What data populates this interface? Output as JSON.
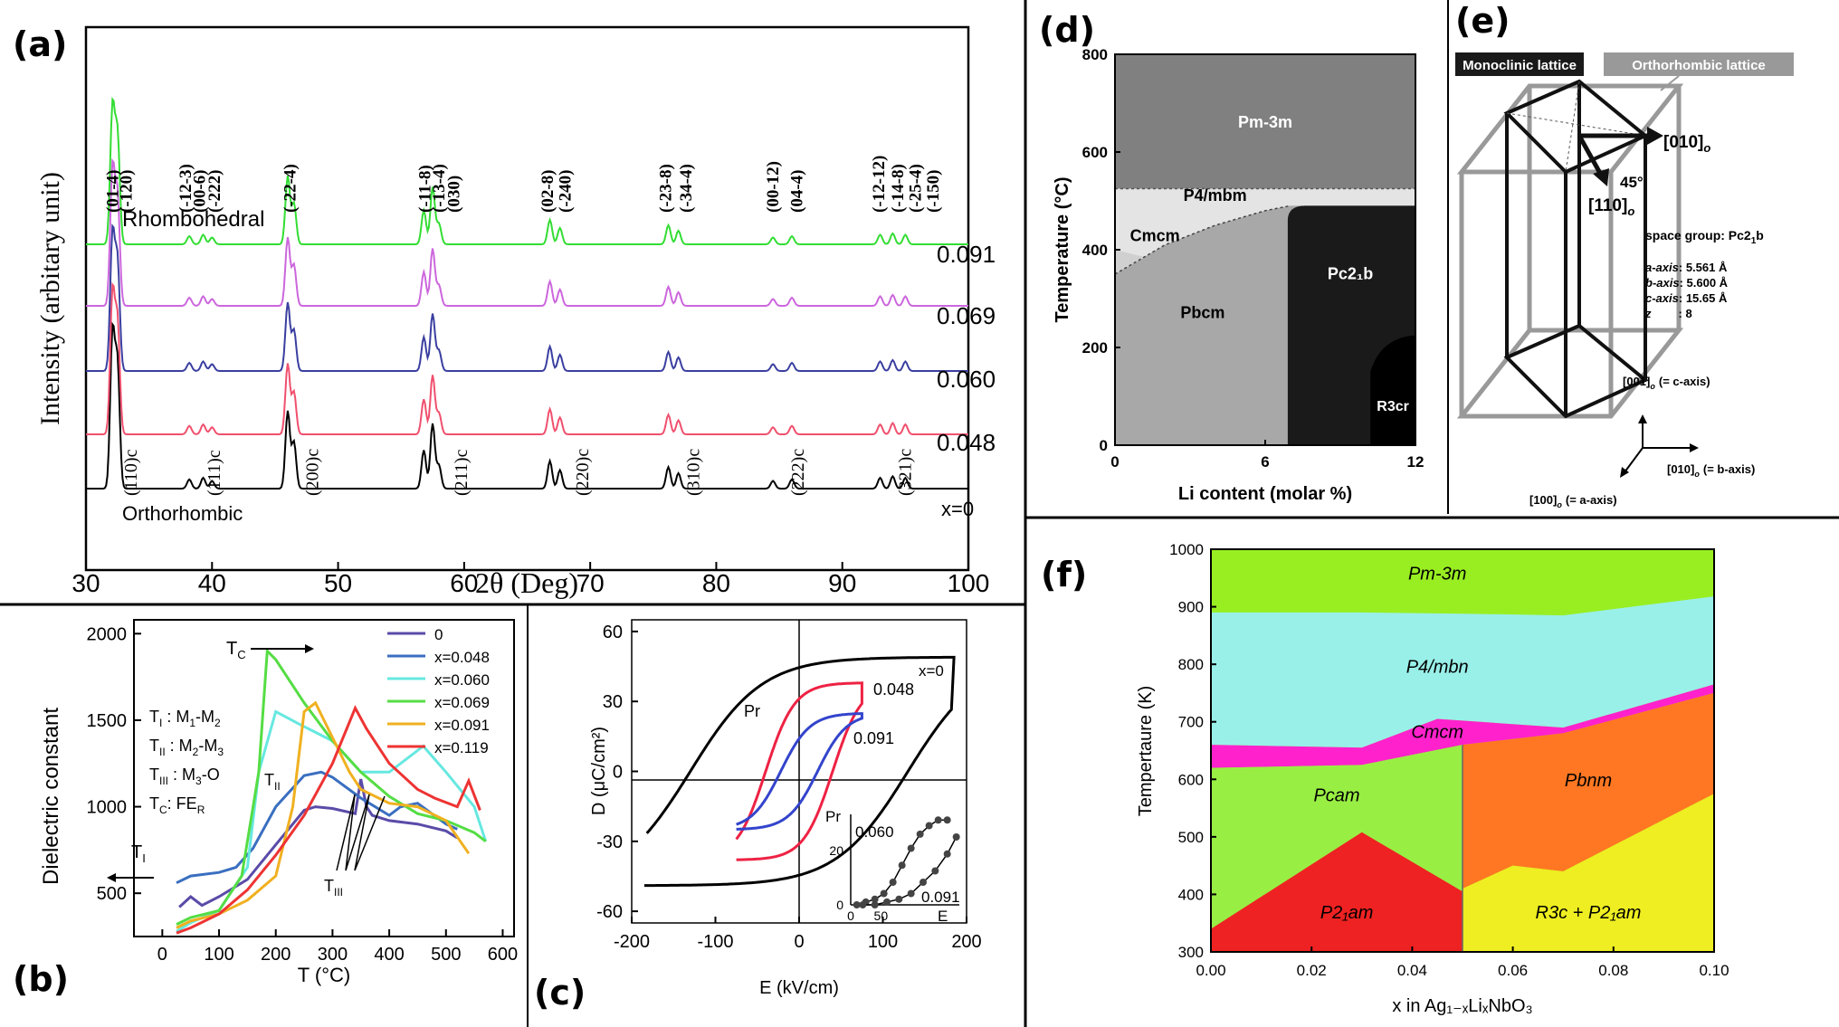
{
  "chart_data": [
    {
      "panel": "(a)",
      "type": "line",
      "title": "",
      "xlabel": "2θ (Deg)",
      "ylabel": "Intensity (arbitary unit)",
      "xlim": [
        30,
        100
      ],
      "xticks": [
        "30",
        "40",
        "50",
        "60",
        "70",
        "80",
        "90",
        "100"
      ],
      "series": [
        {
          "name": "x=0",
          "label": "x=0",
          "color": "#000000",
          "level": 0,
          "phase": "Orthorhombic"
        },
        {
          "name": "0.048",
          "label": "0.048",
          "color": "#f0506e",
          "level": 1
        },
        {
          "name": "0.060",
          "label": "0.060",
          "color": "#3a3fa0",
          "level": 2
        },
        {
          "name": "0.069",
          "label": "0.069",
          "color": "#cc66dd",
          "level": 3
        },
        {
          "name": "0.091",
          "label": "0.091",
          "color": "#33dd33",
          "level": 4,
          "phase": "Rhombohedral"
        }
      ],
      "phase_labels": {
        "top": "Rhombohedral",
        "bottom": "Orthorhombic"
      },
      "peaks": [
        {
          "pos": 32.1,
          "h": 1.0
        },
        {
          "pos": 32.5,
          "h": 0.8
        },
        {
          "pos": 38.2,
          "h": 0.06
        },
        {
          "pos": 39.3,
          "h": 0.07
        },
        {
          "pos": 40.0,
          "h": 0.05
        },
        {
          "pos": 46.0,
          "h": 0.5
        },
        {
          "pos": 46.5,
          "h": 0.3
        },
        {
          "pos": 56.8,
          "h": 0.25
        },
        {
          "pos": 57.5,
          "h": 0.42
        },
        {
          "pos": 58.0,
          "h": 0.15
        },
        {
          "pos": 66.8,
          "h": 0.18
        },
        {
          "pos": 67.6,
          "h": 0.12
        },
        {
          "pos": 76.2,
          "h": 0.14
        },
        {
          "pos": 77.0,
          "h": 0.1
        },
        {
          "pos": 84.5,
          "h": 0.05
        },
        {
          "pos": 86.0,
          "h": 0.06
        },
        {
          "pos": 93.0,
          "h": 0.07
        },
        {
          "pos": 94.0,
          "h": 0.08
        },
        {
          "pos": 95.0,
          "h": 0.07
        }
      ],
      "top_indices": [
        {
          "t": "(01-4)",
          "x": 32.1
        },
        {
          "t": "(-120)",
          "x": 33.2
        },
        {
          "t": "(-12-3)",
          "x": 37.9
        },
        {
          "t": "(00-6)",
          "x": 39.0
        },
        {
          "t": "(-222)",
          "x": 40.2
        },
        {
          "t": "(-22-4)",
          "x": 46.2
        },
        {
          "t": "(-11-8)",
          "x": 56.9
        },
        {
          "t": "(-13-4)",
          "x": 58.0
        },
        {
          "t": "(030)",
          "x": 59.2
        },
        {
          "t": "(02-8)",
          "x": 66.6
        },
        {
          "t": "(-240)",
          "x": 68.0
        },
        {
          "t": "(-23-8)",
          "x": 76.0
        },
        {
          "t": "(-34-4)",
          "x": 77.6
        },
        {
          "t": "(00-12)",
          "x": 84.5
        },
        {
          "t": "(04-4)",
          "x": 86.4
        },
        {
          "t": "(-12-12)",
          "x": 92.9
        },
        {
          "t": "(-14-8)",
          "x": 94.4
        },
        {
          "t": "(-25-4)",
          "x": 95.8
        },
        {
          "t": "(-150)",
          "x": 97.2
        }
      ],
      "bottom_indices": [
        {
          "t": "(110)c",
          "x": 33.6
        },
        {
          "t": "(111)c",
          "x": 40.2
        },
        {
          "t": "(200)c",
          "x": 48.0
        },
        {
          "t": "(211)c",
          "x": 59.8
        },
        {
          "t": "(220)c",
          "x": 69.4
        },
        {
          "t": "(310)c",
          "x": 78.2
        },
        {
          "t": "(222)c",
          "x": 86.5
        },
        {
          "t": "(321)c",
          "x": 95.0
        }
      ]
    },
    {
      "panel": "(b)",
      "type": "line",
      "xlabel": "T (°C)",
      "ylabel": "Dielectric constant",
      "xlim": [
        -50,
        620
      ],
      "ylim": [
        250,
        2080
      ],
      "xticks": [
        "0",
        "100",
        "200",
        "300",
        "400",
        "500",
        "600"
      ],
      "yticks": [
        "500",
        "1000",
        "1500",
        "2000"
      ],
      "legend": "top-right",
      "annotations": {
        "tc": "T",
        "tc_sub": "C",
        "ti": "T",
        "ti_sub": "I",
        "tii": "T",
        "tii_sub": "II",
        "tiii": "T",
        "tiii_sub": "III"
      },
      "key_lines": [
        {
          "a": "T",
          "s": "I",
          "b": " : M",
          "s2": "1",
          "c": "-M",
          "s3": "2"
        },
        {
          "a": "T",
          "s": "II",
          "b": " : M",
          "s2": "2",
          "c": "-M",
          "s3": "3"
        },
        {
          "a": "T",
          "s": "III",
          "b": " : M",
          "s2": "3",
          "c": "-O",
          "s3": ""
        },
        {
          "a": "T",
          "s": "C",
          "b": ": FE",
          "s2": "R",
          "c": "",
          "s3": ""
        }
      ],
      "series": [
        {
          "name": "0",
          "color": "#5a4ba8",
          "x": [
            30,
            50,
            70,
            100,
            150,
            200,
            250,
            270,
            300,
            340,
            350,
            360,
            370,
            400,
            450,
            500,
            520
          ],
          "y": [
            420,
            480,
            430,
            480,
            580,
            780,
            980,
            1000,
            990,
            960,
            1160,
            1000,
            950,
            920,
            900,
            860,
            820
          ]
        },
        {
          "name": "x=0.048",
          "color": "#3a6fc0",
          "x": [
            25,
            50,
            100,
            130,
            160,
            200,
            250,
            280,
            300,
            350,
            400,
            420,
            450,
            500,
            520
          ],
          "y": [
            560,
            600,
            620,
            650,
            760,
            1000,
            1180,
            1200,
            1170,
            1050,
            950,
            1000,
            1020,
            900,
            870
          ]
        },
        {
          "name": "x=0.060",
          "color": "#66e8e0",
          "x": [
            25,
            50,
            100,
            150,
            170,
            200,
            240,
            300,
            350,
            400,
            440,
            460,
            500,
            550,
            570
          ],
          "y": [
            280,
            330,
            400,
            650,
            1200,
            1550,
            1480,
            1380,
            1200,
            1200,
            1300,
            1350,
            1200,
            1000,
            800
          ]
        },
        {
          "name": "x=0.069",
          "color": "#55dd44",
          "x": [
            25,
            50,
            100,
            140,
            170,
            185,
            200,
            250,
            300,
            350,
            400,
            450,
            500,
            550,
            570
          ],
          "y": [
            320,
            360,
            400,
            600,
            1200,
            1900,
            1850,
            1600,
            1380,
            1200,
            1060,
            960,
            920,
            850,
            800
          ]
        },
        {
          "name": "x=0.091",
          "color": "#f0b020",
          "x": [
            25,
            50,
            100,
            150,
            200,
            230,
            250,
            270,
            300,
            330,
            350,
            400,
            450,
            500,
            540
          ],
          "y": [
            300,
            340,
            380,
            460,
            600,
            1000,
            1550,
            1600,
            1400,
            1200,
            1100,
            1020,
            1000,
            920,
            730
          ]
        },
        {
          "name": "x=0.119",
          "color": "#ee3333",
          "x": [
            25,
            50,
            100,
            150,
            200,
            250,
            300,
            340,
            360,
            400,
            450,
            480,
            520,
            540,
            560
          ],
          "y": [
            270,
            300,
            380,
            520,
            720,
            950,
            1250,
            1570,
            1450,
            1250,
            1100,
            1050,
            1000,
            1150,
            980
          ]
        }
      ]
    },
    {
      "panel": "(c)",
      "type": "line",
      "xlabel": "E (kV/cm)",
      "ylabel": "D (μC/cm²)",
      "xlim": [
        -200,
        200
      ],
      "ylim": [
        -65,
        65
      ],
      "xticks": [
        "-200",
        "-100",
        "0",
        "100",
        "200"
      ],
      "yticks": [
        "60",
        "30",
        "0",
        "-30",
        "-60"
      ],
      "annotations": {
        "pr": "Pr",
        "lbl_x0": "x=0",
        "lbl_048": "0.048",
        "lbl_091": "0.091"
      },
      "series": [
        {
          "name": "x=0",
          "color": "#000000",
          "loop": {
            "Emax": 185,
            "Pmax": 49,
            "Ec": 130
          }
        },
        {
          "name": "0.048",
          "color": "#ee2244",
          "loop": {
            "Emax": 75,
            "Pmax": 38,
            "Ec": 40
          }
        },
        {
          "name": "0.091",
          "color": "#3344cc",
          "loop": {
            "Emax": 75,
            "Pmax": 25,
            "Ec": 22
          }
        }
      ],
      "inset": {
        "xlabel": "E",
        "ylabel": "Pr",
        "xticks": [
          "0",
          "50"
        ],
        "yticks": [
          "0",
          "20"
        ],
        "series": [
          {
            "name": "0.060",
            "x": [
              10,
              25,
              40,
              55,
              70,
              85,
              100,
              115,
              130,
              145,
              160
            ],
            "y": [
              0,
              1,
              2,
              4,
              8,
              14,
              20,
              25,
              28,
              30,
              30
            ]
          },
          {
            "name": "0.091",
            "x": [
              20,
              40,
              60,
              80,
              100,
              120,
              140,
              160,
              175
            ],
            "y": [
              0,
              0,
              1,
              2,
              4,
              8,
              12,
              18,
              24
            ]
          }
        ]
      }
    },
    {
      "panel": "(d)",
      "type": "area",
      "xlabel": "Li content (molar %)",
      "ylabel": "Temperature (°C)",
      "xlim": [
        0,
        12
      ],
      "ylim": [
        0,
        800
      ],
      "xticks": [
        "0",
        "6",
        "12"
      ],
      "yticks": [
        "0",
        "200",
        "400",
        "600",
        "800"
      ],
      "phases": [
        {
          "name": "Pm-3m",
          "color": "#808080"
        },
        {
          "name": "P4/mbm",
          "color": "#e4e4e4"
        },
        {
          "name": "Cmcm",
          "color": "#d0d0d0"
        },
        {
          "name": "Pbcm",
          "color": "#a8a8a8"
        },
        {
          "name": "Pc2₁b",
          "color": "#1a1a1a"
        },
        {
          "name": "R3cr",
          "color": "#000000"
        }
      ],
      "boundaries": {
        "pm3m_lower": 525,
        "p4_lower": 490,
        "pc21b_left": 6.9,
        "cmcm_curve": [
          [
            0,
            350
          ],
          [
            2,
            410
          ],
          [
            4,
            450
          ],
          [
            6,
            480
          ],
          [
            7,
            490
          ]
        ]
      }
    },
    {
      "panel": "(f)",
      "type": "area",
      "xlabel": "x in Ag₁₋ₓLiₓNbO₃",
      "ylabel": "Tempertaure (K)",
      "xlim": [
        0,
        0.1
      ],
      "ylim": [
        300,
        1000
      ],
      "xticks": [
        "0.00",
        "0.02",
        "0.04",
        "0.06",
        "0.08",
        "0.10"
      ],
      "yticks": [
        "300",
        "400",
        "500",
        "600",
        "700",
        "800",
        "900",
        "1000"
      ],
      "phases": [
        {
          "name": "Pm-3m",
          "color": "#99ee22"
        },
        {
          "name": "P4/mbn",
          "color": "#99f0e8"
        },
        {
          "name": "Cmcm",
          "color": "#ff22cc"
        },
        {
          "name": "Pcam",
          "color": "#99ee44"
        },
        {
          "name": "Pbnm",
          "color": "#ff7722"
        },
        {
          "name": "P2₁am",
          "color": "#ee2222"
        },
        {
          "name": "R3c + P2₁am",
          "color": "#eeee22"
        }
      ],
      "boundaries": {
        "pm3m_lower": [
          [
            0,
            890
          ],
          [
            0.03,
            890
          ],
          [
            0.05,
            888
          ],
          [
            0.07,
            885
          ],
          [
            0.1,
            918
          ]
        ],
        "p4_lower": [
          [
            0,
            660
          ],
          [
            0.03,
            655
          ],
          [
            0.045,
            705
          ],
          [
            0.07,
            690
          ],
          [
            0.1,
            765
          ]
        ],
        "cmcm_lower": [
          [
            0,
            620
          ],
          [
            0.03,
            625
          ],
          [
            0.05,
            660
          ],
          [
            0.07,
            680
          ],
          [
            0.1,
            750
          ]
        ],
        "p21am_upper": [
          [
            0,
            340
          ],
          [
            0.03,
            508
          ],
          [
            0.05,
            405
          ]
        ],
        "r3c_upper": [
          [
            0.05,
            410
          ],
          [
            0.06,
            450
          ],
          [
            0.07,
            440
          ],
          [
            0.1,
            575
          ]
        ],
        "vertical_x": 0.05
      }
    }
  ],
  "crystal_panel": {
    "label": "(e)",
    "monoclinic_label": "Monoclinic lattice",
    "orthorhombic_label": "Orthorhombic lattice",
    "angle": "45°",
    "dir_010": "[010]",
    "dir_110": "[110]",
    "sub_o": "o",
    "space_group": "space group: Pc2",
    "space_group_sub": "1",
    "space_group_end": "b",
    "a_axis_key": "a-axis",
    "a_axis_val": ": 5.561 Å",
    "b_axis_key": "b-axis",
    "b_axis_val": ": 5.600 Å",
    "c_axis_key": "c-axis",
    "c_axis_val": ": 15.65 Å",
    "z_key": "z",
    "z_val": ": 8",
    "axis_001": "[001]",
    "axis_001_note": "(= c-axis)",
    "axis_010": "[010]",
    "axis_010_note": "(= b-axis)",
    "axis_100": "[100]",
    "axis_100_note": "(= a-axis)"
  },
  "panel_labels": {
    "a": "(a)",
    "b": "(b)",
    "c": "(c)",
    "d": "(d)",
    "e": "(e)",
    "f": "(f)"
  }
}
